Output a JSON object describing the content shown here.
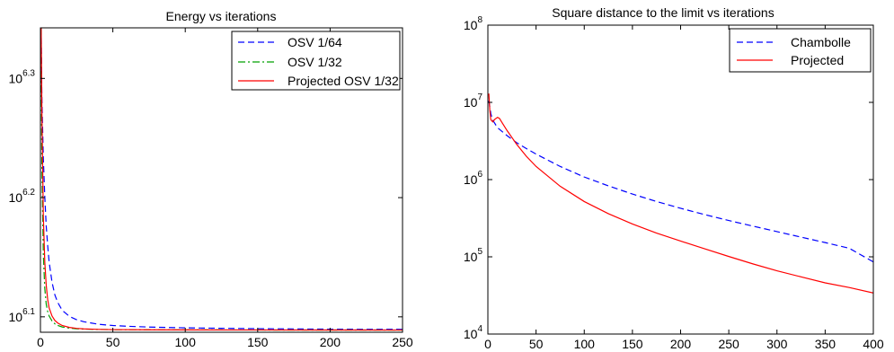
{
  "chart_data": [
    {
      "type": "line",
      "title": "Energy vs iterations",
      "xlabel": "",
      "ylabel": "",
      "xlim": [
        0,
        250
      ],
      "ylim": [
        1222000.0,
        2200000.0
      ],
      "yscale": "log",
      "grid": false,
      "legend_position": "top-right",
      "x_ticks": [
        0,
        50,
        100,
        150,
        200,
        250
      ],
      "x_tick_labels": [
        "0",
        "50",
        "100",
        "150",
        "200",
        "250"
      ],
      "y_ticks": [
        1258925,
        1584893,
        1995262
      ],
      "y_tick_labels": [
        {
          "base": "10",
          "exp": "6.1"
        },
        {
          "base": "10",
          "exp": "6.2"
        },
        {
          "base": "10",
          "exp": "6.3"
        }
      ],
      "series": [
        {
          "name": "OSV 1/64",
          "color": "#0000ff",
          "style": "dashed",
          "x": [
            0.5,
            1,
            2,
            3,
            4,
            5,
            6,
            8,
            10,
            12,
            15,
            20,
            25,
            30,
            40,
            50,
            60,
            75,
            100,
            125,
            150,
            175,
            200,
            225,
            250
          ],
          "y": [
            2200000,
            1925000,
            1712000,
            1588000,
            1500000,
            1445000,
            1400000,
            1346000,
            1313000,
            1294000,
            1275000,
            1260000,
            1252000,
            1247000,
            1241000,
            1238000,
            1236200,
            1234300,
            1232400,
            1231300,
            1230400,
            1229800,
            1229300,
            1229000,
            1228800
          ]
        },
        {
          "name": "OSV 1/32",
          "color": "#00a000",
          "style": "dashdot",
          "x": [
            0.5,
            1,
            2,
            3,
            4,
            5,
            6,
            8,
            10,
            12,
            15,
            20,
            25,
            30,
            40,
            50,
            75,
            100,
            150,
            200,
            250
          ],
          "y": [
            2200000,
            1690000,
            1420000,
            1330000,
            1290000,
            1272000,
            1261000,
            1249000,
            1242000,
            1238000,
            1234500,
            1231700,
            1230300,
            1229400,
            1228600,
            1228200,
            1227800,
            1227600,
            1227400,
            1227300,
            1227200
          ]
        },
        {
          "name": "Projected OSV 1/32",
          "color": "#ff0000",
          "style": "solid",
          "x": [
            0.5,
            1,
            2,
            3,
            4,
            5,
            6,
            8,
            10,
            12,
            15,
            20,
            25,
            30,
            40,
            50,
            75,
            100,
            150,
            200,
            250
          ],
          "y": [
            2200000,
            1880000,
            1530000,
            1400000,
            1338000,
            1302000,
            1281000,
            1261000,
            1250000,
            1244000,
            1238000,
            1233500,
            1231200,
            1229900,
            1228800,
            1228300,
            1227800,
            1227600,
            1227400,
            1227300,
            1227200
          ]
        }
      ]
    },
    {
      "type": "line",
      "title": "Square distance to the limit vs iterations",
      "xlabel": "",
      "ylabel": "",
      "xlim": [
        0,
        400
      ],
      "ylim": [
        10000,
        100000000
      ],
      "yscale": "log",
      "grid": false,
      "legend_position": "top-right",
      "x_ticks": [
        0,
        50,
        100,
        150,
        200,
        250,
        300,
        350,
        400
      ],
      "x_tick_labels": [
        "0",
        "50",
        "100",
        "150",
        "200",
        "250",
        "300",
        "350",
        "400"
      ],
      "y_ticks": [
        10000,
        100000,
        1000000,
        10000000,
        100000000
      ],
      "y_tick_labels": [
        {
          "base": "10",
          "exp": "4"
        },
        {
          "base": "10",
          "exp": "5"
        },
        {
          "base": "10",
          "exp": "6"
        },
        {
          "base": "10",
          "exp": "7"
        },
        {
          "base": "10",
          "exp": "8"
        }
      ],
      "series": [
        {
          "name": "Chambolle",
          "color": "#0000ff",
          "style": "dashed",
          "x": [
            1,
            3,
            5,
            10,
            20,
            30,
            40,
            50,
            75,
            100,
            125,
            150,
            175,
            200,
            225,
            250,
            275,
            300,
            325,
            350,
            375,
            400
          ],
          "y": [
            10500000,
            7200000,
            5900000,
            4700000,
            3700000,
            3000000,
            2520000,
            2140000,
            1480000,
            1080000,
            830000,
            650000,
            520000,
            425000,
            352000,
            295000,
            250000,
            212000,
            180000,
            153000,
            129000,
            86000
          ]
        },
        {
          "name": "Projected",
          "color": "#ff0000",
          "style": "solid",
          "x": [
            1,
            2,
            3,
            5,
            7,
            10,
            12,
            15,
            20,
            25,
            30,
            40,
            50,
            75,
            100,
            125,
            150,
            175,
            200,
            225,
            250,
            275,
            300,
            325,
            350,
            375,
            400
          ],
          "y": [
            13000000,
            8000000,
            6000000,
            5600000,
            6000000,
            6400000,
            6200000,
            5400000,
            4300000,
            3500000,
            2850000,
            2000000,
            1480000,
            820000,
            520000,
            362000,
            266000,
            203000,
            160000,
            127000,
            101000,
            81000,
            66000,
            55000,
            46000,
            40000,
            34000
          ]
        }
      ]
    }
  ]
}
